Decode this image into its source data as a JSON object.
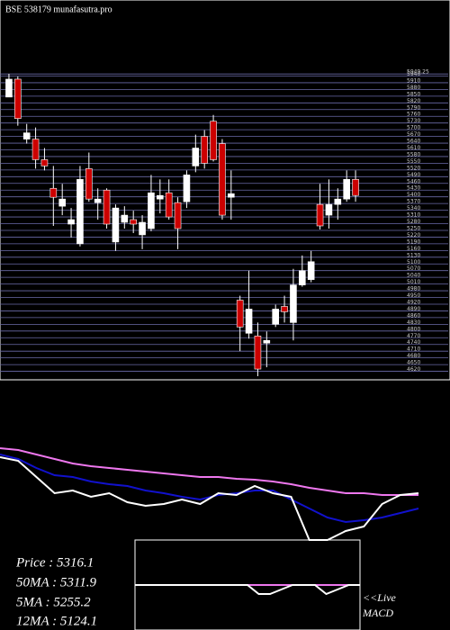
{
  "title": "BSE 538179 munafasutra.pro",
  "info": [
    "Price   : 5316.1",
    "50MA : 5311.9",
    "5MA : 5255.2",
    "12MA : 5124.1"
  ],
  "live_label": "<<Live",
  "macd_label": "MACD",
  "chart_data": [
    {
      "type": "candlestick",
      "up_color": "#ffffff",
      "down_color": "#cc0000",
      "grid": true,
      "open": [
        5846,
        5926,
        5658,
        5658,
        5566,
        5438,
        5358,
        5278,
        5190,
        5526,
        5374,
        5430,
        5198,
        5286,
        5298,
        5230,
        5258,
        5390,
        5418,
        5374,
        5378,
        5538,
        5670,
        5738,
        5638,
        5398,
        4938,
        4790,
        4778,
        4746,
        4830,
        4910,
        4838,
        5006,
        5030,
        5366,
        5318,
        5366,
        5390,
        5478
      ],
      "high": [
        5950,
        5938,
        5726,
        5710,
        5618,
        5538,
        5458,
        5350,
        5538,
        5598,
        5438,
        5438,
        5366,
        5358,
        5338,
        5318,
        5498,
        5478,
        5478,
        5398,
        5518,
        5678,
        5698,
        5766,
        5658,
        5518,
        4958,
        5070,
        4838,
        4798,
        4918,
        4958,
        5078,
        5138,
        5158,
        5458,
        5478,
        5438,
        5518,
        5518
      ],
      "low": [
        5846,
        5718,
        5638,
        5526,
        5518,
        5270,
        5318,
        5218,
        5178,
        5378,
        5298,
        5258,
        5158,
        5258,
        5238,
        5166,
        5246,
        5326,
        5298,
        5166,
        5350,
        5510,
        5526,
        5558,
        5298,
        5298,
        4710,
        4766,
        4598,
        4638,
        4818,
        4838,
        4758,
        4998,
        5018,
        5254,
        5258,
        5298,
        5378,
        5378
      ],
      "close": [
        5926,
        5750,
        5686,
        5566,
        5538,
        5398,
        5390,
        5298,
        5478,
        5390,
        5390,
        5278,
        5350,
        5318,
        5278,
        5286,
        5418,
        5406,
        5310,
        5258,
        5498,
        5618,
        5550,
        5566,
        5318,
        5414,
        4818,
        4898,
        4630,
        4758,
        4898,
        4886,
        5006,
        5070,
        5110,
        5270,
        5366,
        5390,
        5478,
        5406
      ],
      "ylim": [
        4590,
        5950
      ],
      "yticks": [
        {
          "value": 5949.25,
          "label": "5949.25"
        },
        5940,
        5910,
        5880,
        5850,
        5820,
        5790,
        5760,
        5730,
        5700,
        5670,
        5640,
        5610,
        5580,
        5550,
        5520,
        5490,
        5460,
        5430,
        5400,
        5370,
        5340,
        5310,
        5280,
        5250,
        5220,
        5190,
        5160,
        5130,
        5100,
        5070,
        5040,
        5010,
        4980,
        4950,
        4920,
        4890,
        4860,
        4830,
        4800,
        4770,
        4740,
        4710,
        4680,
        4650,
        4620
      ]
    },
    {
      "type": "line",
      "ylim": [
        0,
        110
      ],
      "series": [
        {
          "color": "#ee77ee",
          "values": [
            102,
            100,
            95,
            90,
            85,
            82,
            80,
            78,
            76,
            74,
            72,
            70,
            70,
            68,
            67,
            65,
            62,
            58,
            55,
            52,
            52,
            50,
            50,
            50
          ]
        },
        {
          "color": "#1111cc",
          "values": [
            95,
            90,
            80,
            72,
            70,
            65,
            62,
            60,
            55,
            52,
            48,
            45,
            50,
            52,
            55,
            55,
            45,
            35,
            25,
            20,
            22,
            25,
            30,
            35
          ]
        },
        {
          "color": "#ffffff",
          "values": [
            92,
            88,
            70,
            52,
            55,
            48,
            52,
            42,
            38,
            40,
            45,
            40,
            52,
            50,
            60,
            52,
            48,
            0,
            0,
            10,
            15,
            40,
            50,
            52
          ]
        }
      ]
    },
    {
      "type": "line",
      "ylim": [
        -10,
        10
      ],
      "series": [
        {
          "color": "#ee77ee",
          "values": [
            0,
            0,
            0,
            0,
            0,
            0,
            0,
            0,
            0,
            0,
            0,
            0,
            0,
            0,
            0,
            0,
            0,
            0,
            0,
            0,
            0
          ]
        },
        {
          "color": "#ffffff",
          "values": [
            0,
            0,
            0,
            0,
            0,
            0,
            0,
            0,
            0,
            0,
            0,
            -2,
            -2,
            -1,
            0,
            0,
            0,
            -2,
            -1,
            0,
            0
          ]
        }
      ]
    }
  ]
}
